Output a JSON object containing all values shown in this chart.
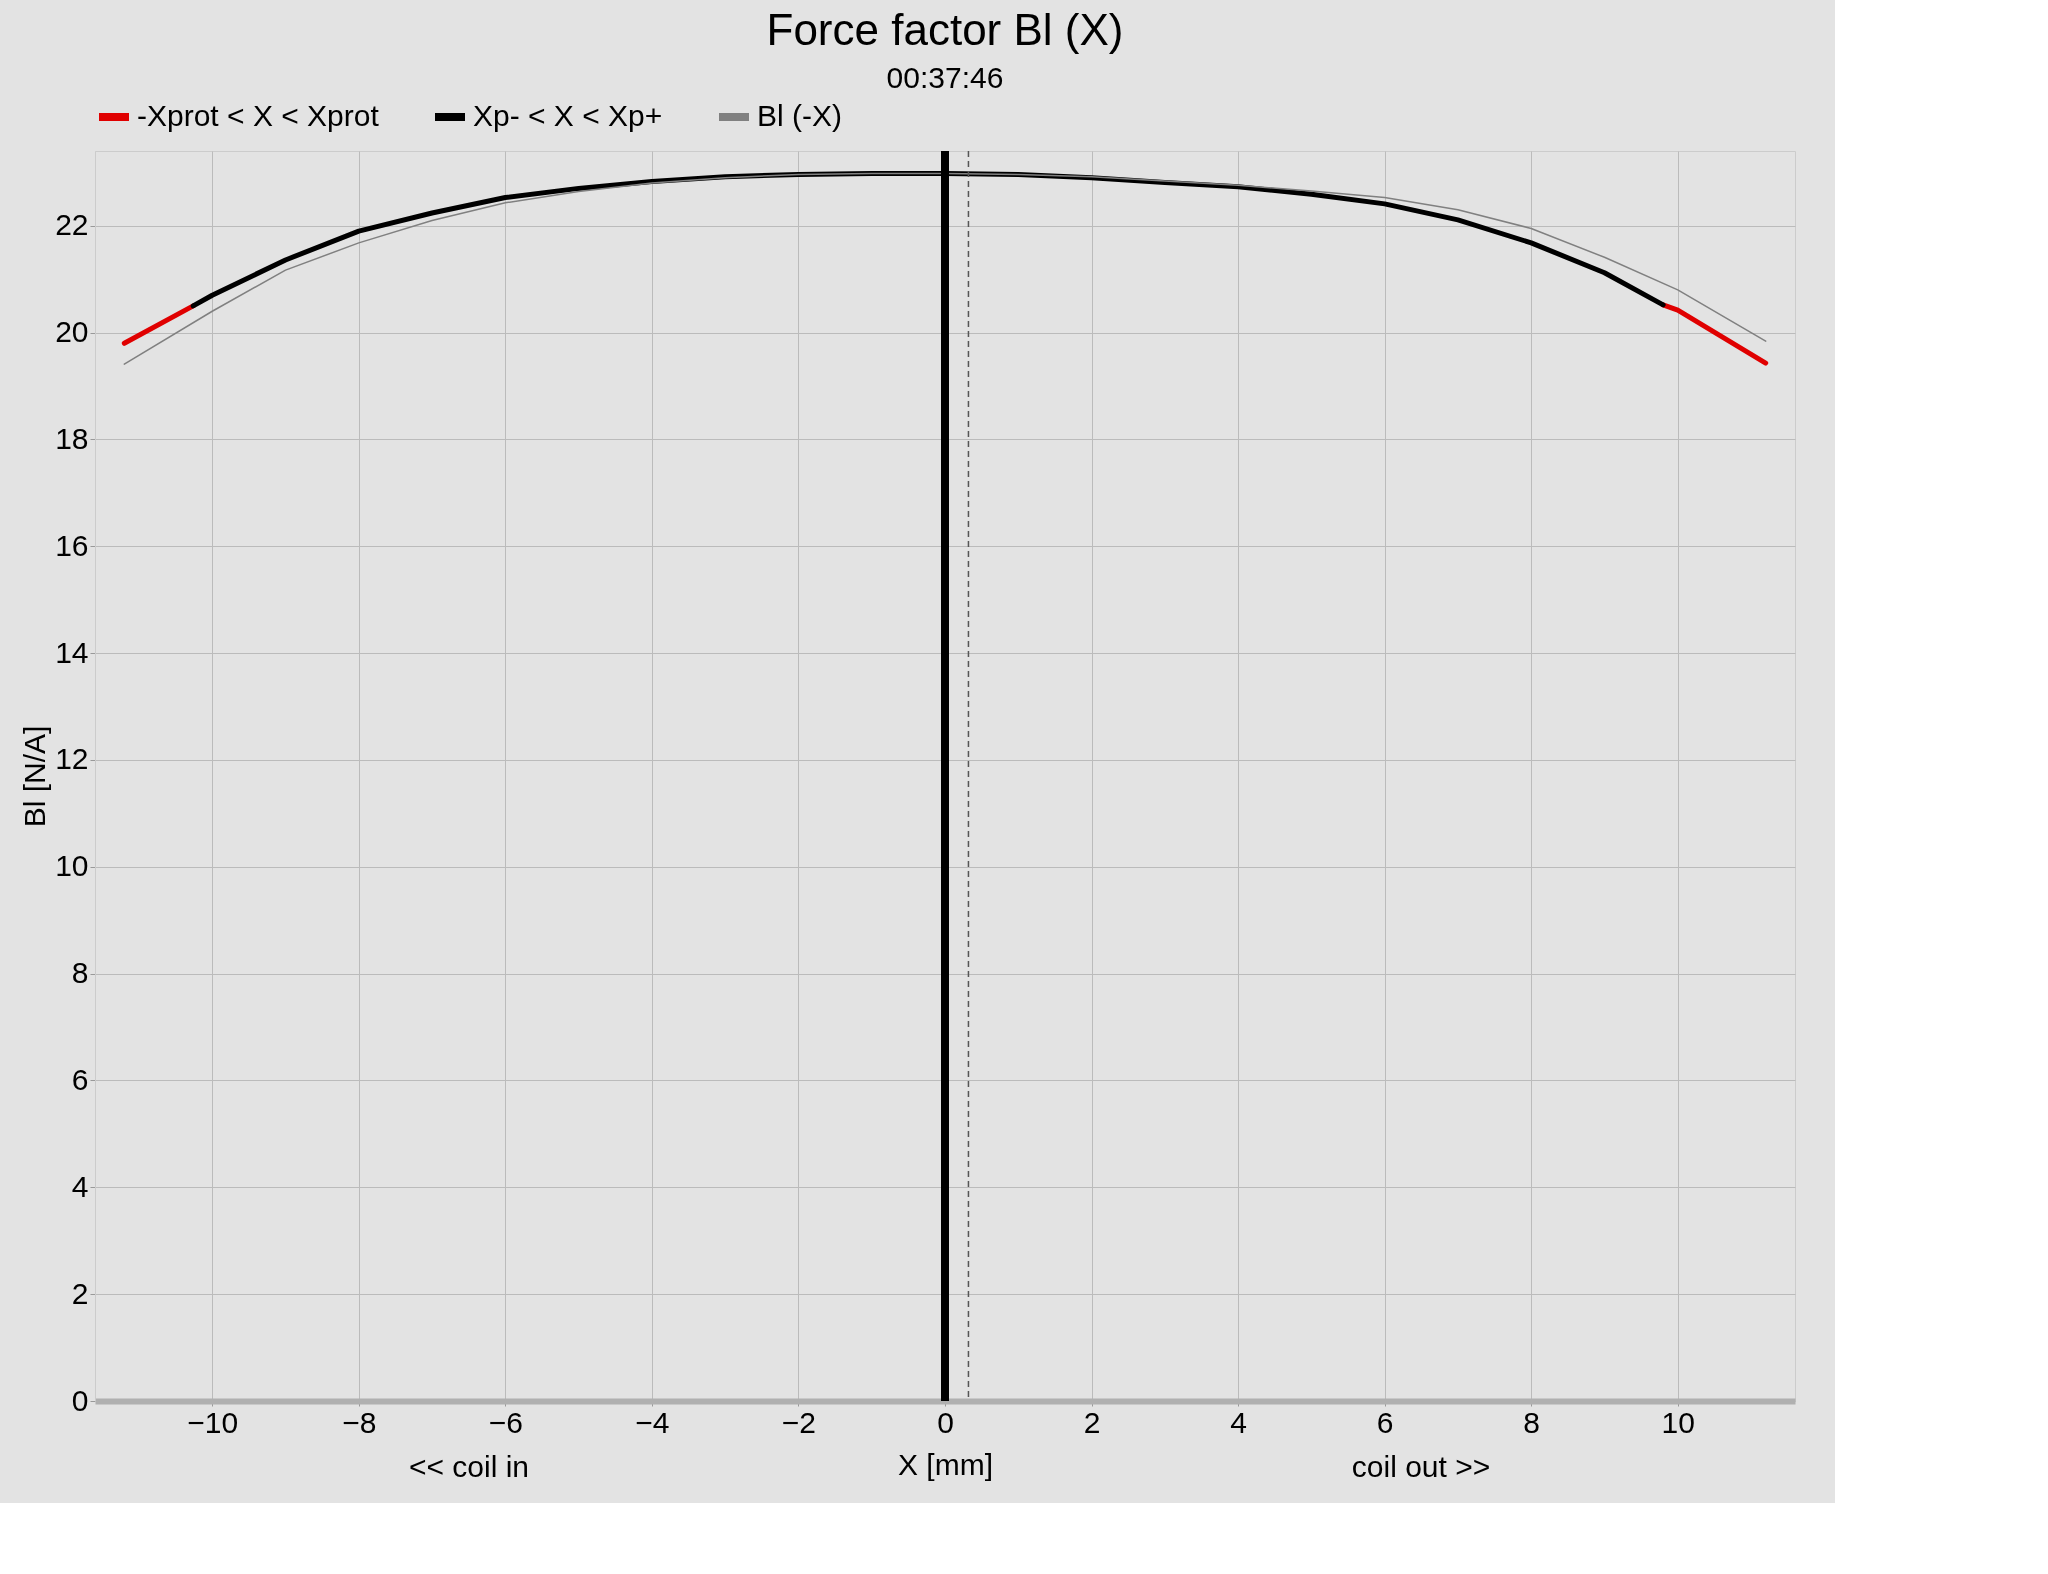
{
  "chart_data": {
    "type": "line",
    "title": "Force factor Bl (X)",
    "subtitle": "00:37:46",
    "xlabel": "X [mm]",
    "ylabel": "Bl [N/A]",
    "annotations": [
      "<< coil in",
      "coil out >>"
    ],
    "xlim": [
      -11.6,
      11.6
    ],
    "ylim": [
      0,
      23.4
    ],
    "xticks": [
      -10,
      -8,
      -6,
      -4,
      -2,
      0,
      2,
      4,
      6,
      8,
      10
    ],
    "yticks": [
      0,
      2,
      4,
      6,
      8,
      10,
      12,
      14,
      16,
      18,
      20,
      22
    ],
    "grid": true,
    "legend": "top",
    "line_style": "solid",
    "marker": "none",
    "series": [
      {
        "name": "-Xprot < X < Xprot",
        "color": "#e00000",
        "x": [
          -11.2,
          -10.26,
          -10,
          -9,
          -8,
          -7,
          -6,
          -5,
          -4,
          -3,
          -2,
          -1,
          0,
          1,
          2,
          3,
          4,
          5,
          6,
          7,
          8,
          9,
          9.8,
          10,
          11.2
        ],
        "values": [
          19.8,
          20.5,
          null,
          null,
          null,
          null,
          null,
          null,
          null,
          null,
          null,
          null,
          null,
          null,
          null,
          null,
          null,
          null,
          null,
          null,
          null,
          null,
          20.52,
          20.42,
          19.43
        ]
      },
      {
        "name": "Xp- < X < Xp+",
        "color": "#000000",
        "x": [
          -10.26,
          -10,
          -9,
          -8,
          -7,
          -6,
          -5,
          -4,
          -3,
          -2,
          -1,
          0,
          1,
          2,
          3,
          4,
          5,
          6,
          7,
          8,
          9,
          9.8
        ],
        "values": [
          20.5,
          20.7,
          21.36,
          21.9,
          22.24,
          22.53,
          22.7,
          22.83,
          22.92,
          22.96,
          22.98,
          22.98,
          22.96,
          22.9,
          22.81,
          22.73,
          22.59,
          22.41,
          22.11,
          21.68,
          21.12,
          20.52
        ]
      },
      {
        "name": "Bl (-X)",
        "color": "#808080",
        "x": [
          -11.2,
          -10,
          -9,
          -8,
          -7,
          -6,
          -5,
          -4,
          -3,
          -2,
          -1,
          0,
          1,
          2,
          3,
          4,
          5,
          6,
          7,
          8,
          9,
          10,
          11.2
        ],
        "values": [
          19.41,
          20.4,
          21.17,
          21.68,
          22.1,
          22.43,
          22.64,
          22.8,
          22.9,
          22.96,
          22.98,
          22.98,
          22.96,
          22.92,
          22.84,
          22.76,
          22.65,
          22.53,
          22.3,
          21.95,
          21.41,
          20.8,
          19.84
        ]
      }
    ],
    "ref_lines": [
      {
        "axis": "x",
        "value": 0,
        "color": "#000000",
        "line_style": "solid"
      },
      {
        "axis": "x",
        "value": 0.32,
        "color": "#555555",
        "line_style": "dashed"
      }
    ]
  }
}
